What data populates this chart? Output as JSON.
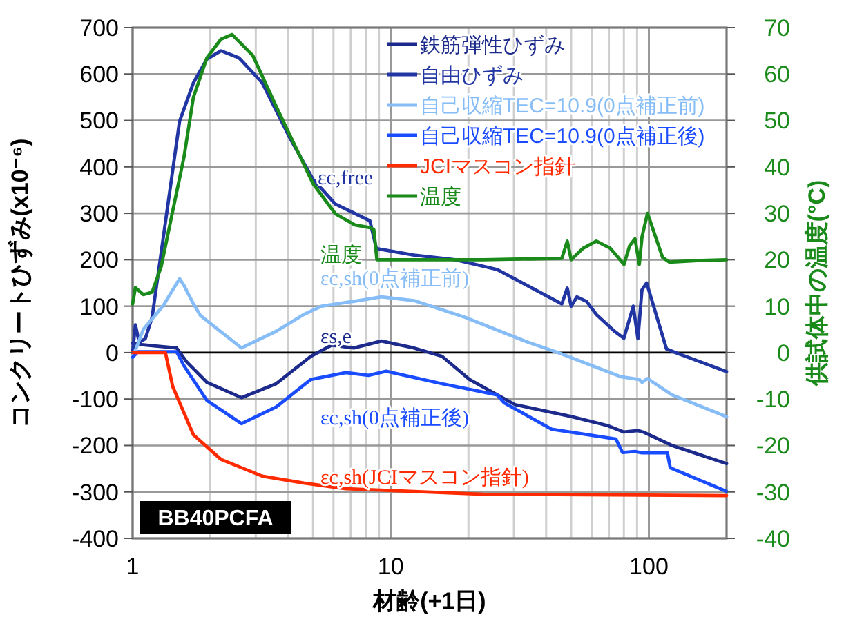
{
  "chart_data": {
    "type": "line",
    "xlabel": "材齢(+1日)",
    "ylabel": "コンクリートひずみ(x10⁻⁶)",
    "y2label": "供試体中の温度(°C)",
    "log": "x",
    "xlim": [
      1,
      200
    ],
    "xticks": [
      1,
      {
        "value": 2,
        "label": null
      },
      {
        "value": 3,
        "label": null
      },
      {
        "value": 4,
        "label": null
      },
      {
        "value": 5,
        "label": null
      },
      {
        "value": 6,
        "label": null
      },
      {
        "value": 7,
        "label": null
      },
      {
        "value": 8,
        "label": null
      },
      {
        "value": 9,
        "label": null
      },
      10,
      {
        "value": 20,
        "label": null
      },
      {
        "value": 30,
        "label": null
      },
      {
        "value": 40,
        "label": null
      },
      {
        "value": 50,
        "label": null
      },
      {
        "value": 60,
        "label": null
      },
      {
        "value": 70,
        "label": null
      },
      {
        "value": 80,
        "label": null
      },
      {
        "value": 90,
        "label": null
      },
      100,
      {
        "value": 200,
        "label": null
      }
    ],
    "ylim": [
      -400,
      700
    ],
    "yticks": [
      -400,
      -300,
      -200,
      -100,
      0,
      100,
      200,
      300,
      400,
      500,
      600,
      700
    ],
    "y2lim": [
      -40,
      70
    ],
    "y2ticks": [
      -40,
      -30,
      -20,
      -10,
      0,
      10,
      20,
      30,
      40,
      50,
      60,
      70
    ],
    "grid": true,
    "legend": "top right",
    "line_style": "solid",
    "marker": "none",
    "series": [
      {
        "name": "鉄筋弾性ひずみ",
        "color": "#1c2a8c",
        "x": [
          1,
          1.05,
          1.19,
          1.48,
          1.62,
          1.94,
          2.64,
          3.6,
          4.9,
          5.9,
          7.2,
          9.2,
          12.3,
          15.8,
          20.2,
          30.3,
          49.5,
          69,
          80,
          90.7,
          95,
          123,
          200
        ],
        "values": [
          20,
          18,
          15,
          10,
          -20,
          -64,
          -97,
          -67,
          -8,
          16,
          10,
          25,
          10,
          -8,
          -58,
          -112,
          -137,
          -157,
          -171,
          -168,
          -171,
          -200,
          -239
        ]
      },
      {
        "name": "自由ひずみ",
        "color": "#2236a3",
        "x": [
          1,
          1.025,
          1.06,
          1.12,
          1.19,
          1.52,
          1.72,
          1.94,
          2.2,
          2.58,
          3.18,
          4.07,
          5.0,
          6.1,
          7.3,
          8.3,
          8.8,
          12.3,
          17.8,
          25.8,
          46,
          48.3,
          50,
          52.6,
          57.4,
          62.6,
          73.6,
          80,
          87,
          90.7,
          94,
          98,
          117,
          127,
          200
        ],
        "values": [
          0,
          60,
          22,
          30,
          76,
          498,
          581,
          632,
          650,
          635,
          581,
          462,
          373,
          320,
          299,
          284,
          224,
          210,
          200,
          179,
          105,
          139,
          100,
          120,
          110,
          82,
          46,
          31,
          100,
          30,
          135,
          150,
          8,
          0,
          -41
        ]
      },
      {
        "name": "自己収縮TEC=10.9(0点補正前)",
        "color": "#86bdf7",
        "x": [
          1,
          1.05,
          1.1,
          1.31,
          1.52,
          1.58,
          1.72,
          1.83,
          2.64,
          3.6,
          4.6,
          5.4,
          7.5,
          9.2,
          12.3,
          19.4,
          33,
          44.6,
          78,
          91.8,
          94,
          98.8,
          123,
          200
        ],
        "values": [
          -10,
          20,
          50,
          100,
          159,
          145,
          105,
          80,
          10,
          46,
          82,
          100,
          112,
          120,
          112,
          76,
          25,
          0,
          -52,
          -58,
          -64,
          -56,
          -91,
          -138
        ]
      },
      {
        "name": "自己収縮TEC=10.9(0点補正後)",
        "color": "#1a4cff",
        "x": [
          1,
          1.05,
          1.48,
          1.58,
          1.94,
          2.64,
          3.6,
          4.9,
          6.7,
          8.2,
          9.6,
          15.8,
          25.8,
          27.5,
          42,
          74.5,
          79,
          88.4,
          94,
          118,
          121,
          200
        ],
        "values": [
          -10,
          2,
          2,
          -28,
          -103,
          -153,
          -117,
          -58,
          -43,
          -49,
          -40,
          -67,
          -91,
          -108,
          -165,
          -186,
          -215,
          -213,
          -216,
          -216,
          -248,
          -299
        ]
      },
      {
        "name": "JCIマスコン指針",
        "color": "#ff2a00",
        "x": [
          1,
          1.34,
          1.43,
          1.72,
          2.2,
          3.18,
          4.6,
          6.7,
          12.3,
          22.8,
          200
        ],
        "values": [
          0,
          0,
          -73,
          -177,
          -230,
          -266,
          -281,
          -293,
          -299,
          -305,
          -308
        ]
      },
      {
        "name": "温度",
        "color": "#1a8a1a",
        "axis": "y2",
        "x": [
          1,
          1.025,
          1.1,
          1.19,
          1.29,
          1.43,
          1.58,
          1.72,
          1.94,
          2.2,
          2.43,
          2.92,
          3.6,
          4.07,
          5.0,
          6.1,
          7.26,
          8.32,
          8.6,
          8.84,
          12.3,
          22.8,
          46,
          48.3,
          50,
          55.4,
          62.6,
          70.8,
          80.1,
          84.2,
          88.4,
          91.8,
          94.1,
          98.8,
          113,
          120,
          154,
          200
        ],
        "values": [
          10.5,
          14,
          12.5,
          13,
          18.5,
          30.5,
          42,
          55,
          63.5,
          67.5,
          68.5,
          64,
          53,
          46.8,
          36.4,
          29.9,
          27.5,
          26.9,
          26.5,
          20,
          20,
          20,
          20.3,
          24,
          20,
          22.4,
          24,
          22.5,
          19,
          23,
          24.5,
          19,
          25,
          30,
          20.5,
          19.5,
          19.8,
          20
        ]
      }
    ],
    "annotations": [
      "εs,e",
      "εc,free",
      "εc,sh(0点補正前)",
      "εc,sh(0点補正後)",
      "εc,sh(JCIマスコン指針)",
      "温度",
      "BB40PCFA"
    ]
  }
}
